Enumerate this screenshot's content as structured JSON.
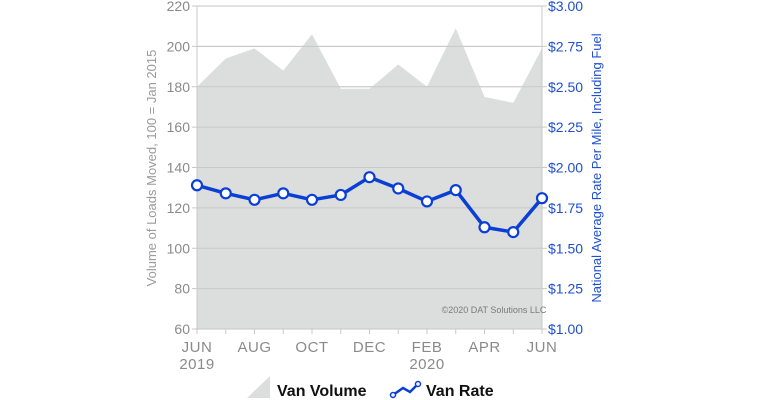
{
  "chart_data": {
    "type": "area+line",
    "title": "",
    "categories": [
      "Jun 2019",
      "Jul 2019",
      "Aug 2019",
      "Sep 2019",
      "Oct 2019",
      "Nov 2019",
      "Dec 2019",
      "Jan 2020",
      "Feb 2020",
      "Mar 2020",
      "Apr 2020",
      "May 2020",
      "Jun 2020"
    ],
    "x_tick_labels": [
      {
        "label": "JUN",
        "sub": "2019",
        "index": 0
      },
      {
        "label": "AUG",
        "sub": "",
        "index": 2
      },
      {
        "label": "OCT",
        "sub": "",
        "index": 4
      },
      {
        "label": "DEC",
        "sub": "",
        "index": 6
      },
      {
        "label": "FEB",
        "sub": "2020",
        "index": 8
      },
      {
        "label": "APR",
        "sub": "",
        "index": 10
      },
      {
        "label": "JUN",
        "sub": "",
        "index": 12
      }
    ],
    "series": [
      {
        "name": "Van Volume",
        "type": "area",
        "axis": "left",
        "color": "#dcdddd",
        "values": [
          180,
          194,
          199,
          188,
          206,
          179,
          179,
          191,
          180,
          209,
          175,
          172,
          199
        ]
      },
      {
        "name": "Van Rate",
        "type": "line",
        "axis": "right",
        "color": "#0a3fd6",
        "values": [
          1.89,
          1.84,
          1.8,
          1.84,
          1.8,
          1.83,
          1.94,
          1.87,
          1.79,
          1.86,
          1.63,
          1.6,
          1.81
        ]
      }
    ],
    "ylabel_left": "Volume of Loads Moved, 100 = Jan 2015",
    "ylabel_right": "National Average Rate Per Mile, Including Fuel",
    "ylim_left": [
      60,
      220
    ],
    "yticks_left": [
      "220",
      "200",
      "180",
      "160",
      "140",
      "120",
      "100",
      "80",
      "60"
    ],
    "ylim_right": [
      1.0,
      3.0
    ],
    "yticks_right": [
      "$3.00",
      "$2.75",
      "$2.50",
      "$2.25",
      "$2.00",
      "$1.75",
      "$1.50",
      "$1.25",
      "$1.00"
    ],
    "grid": true,
    "legend_position": "bottom",
    "annotation": "©2020 DAT Solutions LLC"
  },
  "legend": {
    "volume": "Van Volume",
    "rate": "Van Rate"
  }
}
